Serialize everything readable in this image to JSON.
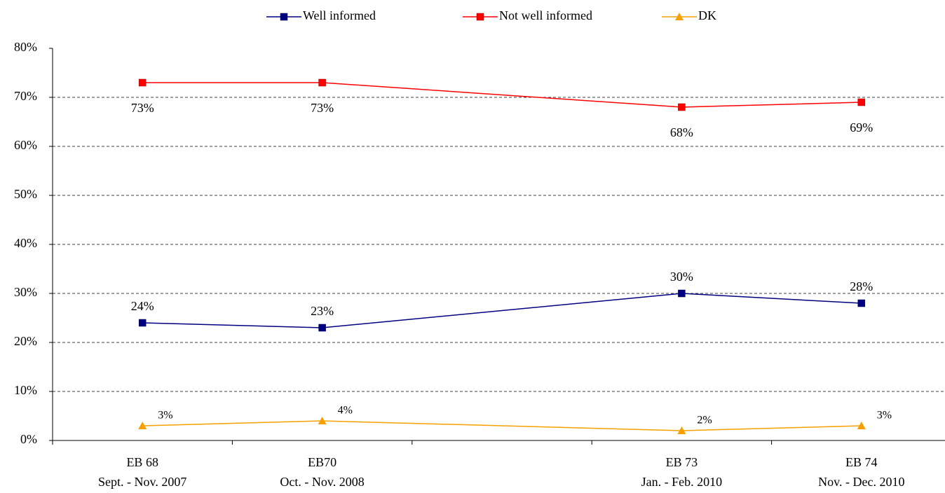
{
  "chart_data": {
    "type": "line",
    "categories": [
      [
        "EB 68",
        "Sept. - Nov. 2007"
      ],
      [
        "EB70",
        "Oct. - Nov. 2008"
      ],
      null,
      [
        "EB 73",
        "Jan. - Feb. 2010"
      ],
      [
        "EB 74",
        "Nov. - Dec. 2010"
      ]
    ],
    "series": [
      {
        "name": "Well informed",
        "color": "#000080",
        "marker": "square",
        "values": [
          24,
          23,
          null,
          30,
          28
        ],
        "value_labels": [
          "24%",
          "23%",
          null,
          "30%",
          "28%"
        ]
      },
      {
        "name": "Not well informed",
        "color": "#ff0000",
        "marker": "square",
        "values": [
          73,
          73,
          null,
          68,
          69
        ],
        "value_labels": [
          "73%",
          "73%",
          null,
          "68%",
          "69%"
        ]
      },
      {
        "name": "DK",
        "color": "#f5a000",
        "marker": "triangle",
        "values": [
          3,
          4,
          null,
          2,
          3
        ],
        "value_labels": [
          "3%",
          "4%",
          null,
          "2%",
          "3%"
        ]
      }
    ],
    "ylim": [
      0,
      80
    ],
    "yticks": [
      {
        "value": 0,
        "label": "0%"
      },
      {
        "value": 10,
        "label": "10%"
      },
      {
        "value": 20,
        "label": "20%"
      },
      {
        "value": 30,
        "label": "30%"
      },
      {
        "value": 40,
        "label": "40%"
      },
      {
        "value": 50,
        "label": "50%"
      },
      {
        "value": 60,
        "label": "60%"
      },
      {
        "value": 70,
        "label": "70%"
      },
      {
        "value": 80,
        "label": "80%"
      }
    ],
    "grid": true,
    "connect_gaps": true,
    "legend": "top"
  }
}
